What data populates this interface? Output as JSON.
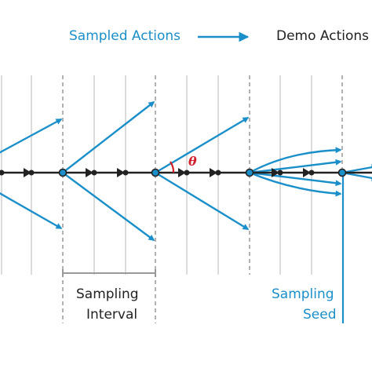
{
  "legend": {
    "sampled_label": "Sampled Actions",
    "demo_label": "Demo Actions",
    "sampled_color": "#1a8fc9",
    "demo_color": "#222222"
  },
  "annotations": {
    "sampling_interval_line1": "Sampling",
    "sampling_interval_line2": "Interval",
    "sampling_seed_line1": "Sampling",
    "sampling_seed_line2": "Seed",
    "angle_symbol": "θ",
    "angle_color": "#d0202a"
  },
  "colors": {
    "gridline": "#c8c8c8",
    "interval_marker": "#888888",
    "seed_fill": "#1a8fc9"
  }
}
